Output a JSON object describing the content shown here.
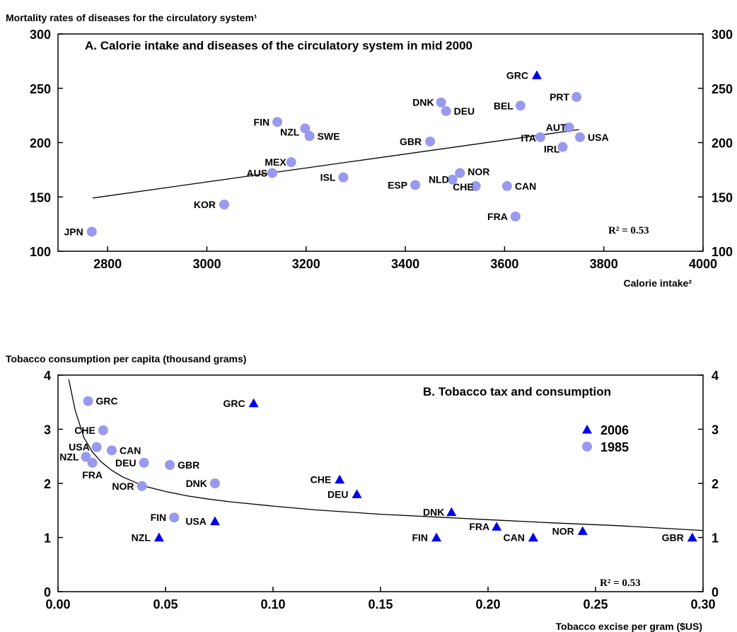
{
  "chart_data": [
    {
      "type": "scatter",
      "title": "A. Calorie intake and diseases of the circulatory system in mid 2000",
      "ylabel": "Mortality rates of diseases for the circulatory system¹",
      "xlabel": "Calorie intake²",
      "xlim": [
        2700,
        4000
      ],
      "ylim": [
        100,
        300
      ],
      "xticks": [
        "2800",
        "3000",
        "3200",
        "3400",
        "3600",
        "3800",
        "4000"
      ],
      "yticks": [
        "100",
        "150",
        "200",
        "250",
        "300"
      ],
      "r2_label": "R² =",
      "r2_value": "0.53",
      "point_color": "#9999ee",
      "triangle_color": "#0000ee",
      "trendline": {
        "x": [
          2770,
          3750
        ],
        "y": [
          149,
          212
        ]
      },
      "points": [
        {
          "label": "JPN",
          "x": 2768,
          "y": 118,
          "marker": "circle"
        },
        {
          "label": "KOR",
          "x": 3035,
          "y": 143,
          "marker": "circle"
        },
        {
          "label": "AUS",
          "x": 3132,
          "y": 172,
          "marker": "circle"
        },
        {
          "label": "MEX",
          "x": 3170,
          "y": 182,
          "marker": "circle"
        },
        {
          "label": "FIN",
          "x": 3142,
          "y": 219,
          "marker": "circle"
        },
        {
          "label": "NZL",
          "x": 3198,
          "y": 213,
          "marker": "circle"
        },
        {
          "label": "SWE",
          "x": 3207,
          "y": 206,
          "marker": "circle"
        },
        {
          "label": "ISL",
          "x": 3275,
          "y": 168,
          "marker": "circle"
        },
        {
          "label": "ESP",
          "x": 3420,
          "y": 161,
          "marker": "circle"
        },
        {
          "label": "GBR",
          "x": 3450,
          "y": 201,
          "marker": "circle"
        },
        {
          "label": "DNK",
          "x": 3472,
          "y": 237,
          "marker": "circle"
        },
        {
          "label": "DEU",
          "x": 3482,
          "y": 229,
          "marker": "circle"
        },
        {
          "label": "NLD",
          "x": 3495,
          "y": 166,
          "marker": "circle"
        },
        {
          "label": "NOR",
          "x": 3510,
          "y": 172,
          "marker": "circle"
        },
        {
          "label": "CHE",
          "x": 3542,
          "y": 160,
          "marker": "circle"
        },
        {
          "label": "CAN",
          "x": 3605,
          "y": 160,
          "marker": "circle"
        },
        {
          "label": "FRA",
          "x": 3622,
          "y": 132,
          "marker": "circle"
        },
        {
          "label": "BEL",
          "x": 3632,
          "y": 234,
          "marker": "circle"
        },
        {
          "label": "ITA",
          "x": 3672,
          "y": 205,
          "marker": "circle"
        },
        {
          "label": "IRL",
          "x": 3717,
          "y": 196,
          "marker": "circle"
        },
        {
          "label": "AUT",
          "x": 3730,
          "y": 214,
          "marker": "circle"
        },
        {
          "label": "PRT",
          "x": 3745,
          "y": 242,
          "marker": "circle"
        },
        {
          "label": "USA",
          "x": 3752,
          "y": 205,
          "marker": "circle"
        },
        {
          "label": "GRC",
          "x": 3665,
          "y": 262,
          "marker": "triangle"
        }
      ]
    },
    {
      "type": "scatter",
      "title": "B. Tobacco tax and consumption",
      "ylabel": "Tobacco consumption per capita (thousand grams)",
      "xlabel": "Tobacco excise per gram ($US)",
      "xlim": [
        0,
        0.3
      ],
      "ylim": [
        0,
        4
      ],
      "xticks": [
        "0.00",
        "0.05",
        "0.10",
        "0.15",
        "0.20",
        "0.25",
        "0.30"
      ],
      "yticks": [
        "0",
        "1",
        "2",
        "3",
        "4"
      ],
      "r2_label": "R² =",
      "r2_value": "0.53",
      "legend": {
        "placement": "right",
        "entries": [
          {
            "name": "2006",
            "marker": "triangle"
          },
          {
            "name": "1985",
            "marker": "circle"
          }
        ]
      },
      "point_color": "#9999ee",
      "triangle_color": "#0000ee",
      "trendline": {
        "x": [
          0.005,
          0.008,
          0.012,
          0.016,
          0.02,
          0.025,
          0.03,
          0.04,
          0.05,
          0.06,
          0.07,
          0.08,
          0.1,
          0.12,
          0.15,
          0.18,
          0.2,
          0.23,
          0.26,
          0.3
        ],
        "y": [
          3.92,
          3.35,
          2.85,
          2.58,
          2.4,
          2.24,
          2.12,
          1.95,
          1.85,
          1.77,
          1.71,
          1.66,
          1.58,
          1.51,
          1.43,
          1.37,
          1.33,
          1.27,
          1.22,
          1.13
        ]
      },
      "points": [
        {
          "label": "GRC",
          "x": 0.014,
          "y": 3.52,
          "marker": "circle"
        },
        {
          "label": "CHE",
          "x": 0.021,
          "y": 2.98,
          "marker": "circle"
        },
        {
          "label": "USA",
          "x": 0.018,
          "y": 2.67,
          "marker": "circle"
        },
        {
          "label": "CAN",
          "x": 0.025,
          "y": 2.61,
          "marker": "circle"
        },
        {
          "label": "NZL",
          "x": 0.013,
          "y": 2.49,
          "marker": "circle"
        },
        {
          "label": "FRA",
          "x": 0.016,
          "y": 2.38,
          "marker": "circle"
        },
        {
          "label": "DEU",
          "x": 0.04,
          "y": 2.38,
          "marker": "circle"
        },
        {
          "label": "GBR",
          "x": 0.052,
          "y": 2.34,
          "marker": "circle"
        },
        {
          "label": "NOR",
          "x": 0.039,
          "y": 1.95,
          "marker": "circle"
        },
        {
          "label": "DNK",
          "x": 0.073,
          "y": 2.0,
          "marker": "circle"
        },
        {
          "label": "FIN",
          "x": 0.054,
          "y": 1.37,
          "marker": "circle"
        },
        {
          "label": "GRC",
          "x": 0.091,
          "y": 3.48,
          "marker": "triangle"
        },
        {
          "label": "NZL",
          "x": 0.047,
          "y": 1.0,
          "marker": "triangle"
        },
        {
          "label": "USA",
          "x": 0.073,
          "y": 1.3,
          "marker": "triangle"
        },
        {
          "label": "CHE",
          "x": 0.131,
          "y": 2.07,
          "marker": "triangle"
        },
        {
          "label": "DEU",
          "x": 0.139,
          "y": 1.8,
          "marker": "triangle"
        },
        {
          "label": "DNK",
          "x": 0.183,
          "y": 1.47,
          "marker": "triangle"
        },
        {
          "label": "FIN",
          "x": 0.176,
          "y": 1.0,
          "marker": "triangle"
        },
        {
          "label": "FRA",
          "x": 0.204,
          "y": 1.2,
          "marker": "triangle"
        },
        {
          "label": "CAN",
          "x": 0.221,
          "y": 1.0,
          "marker": "triangle"
        },
        {
          "label": "NOR",
          "x": 0.244,
          "y": 1.12,
          "marker": "triangle"
        },
        {
          "label": "GBR",
          "x": 0.295,
          "y": 1.0,
          "marker": "triangle"
        }
      ]
    }
  ]
}
